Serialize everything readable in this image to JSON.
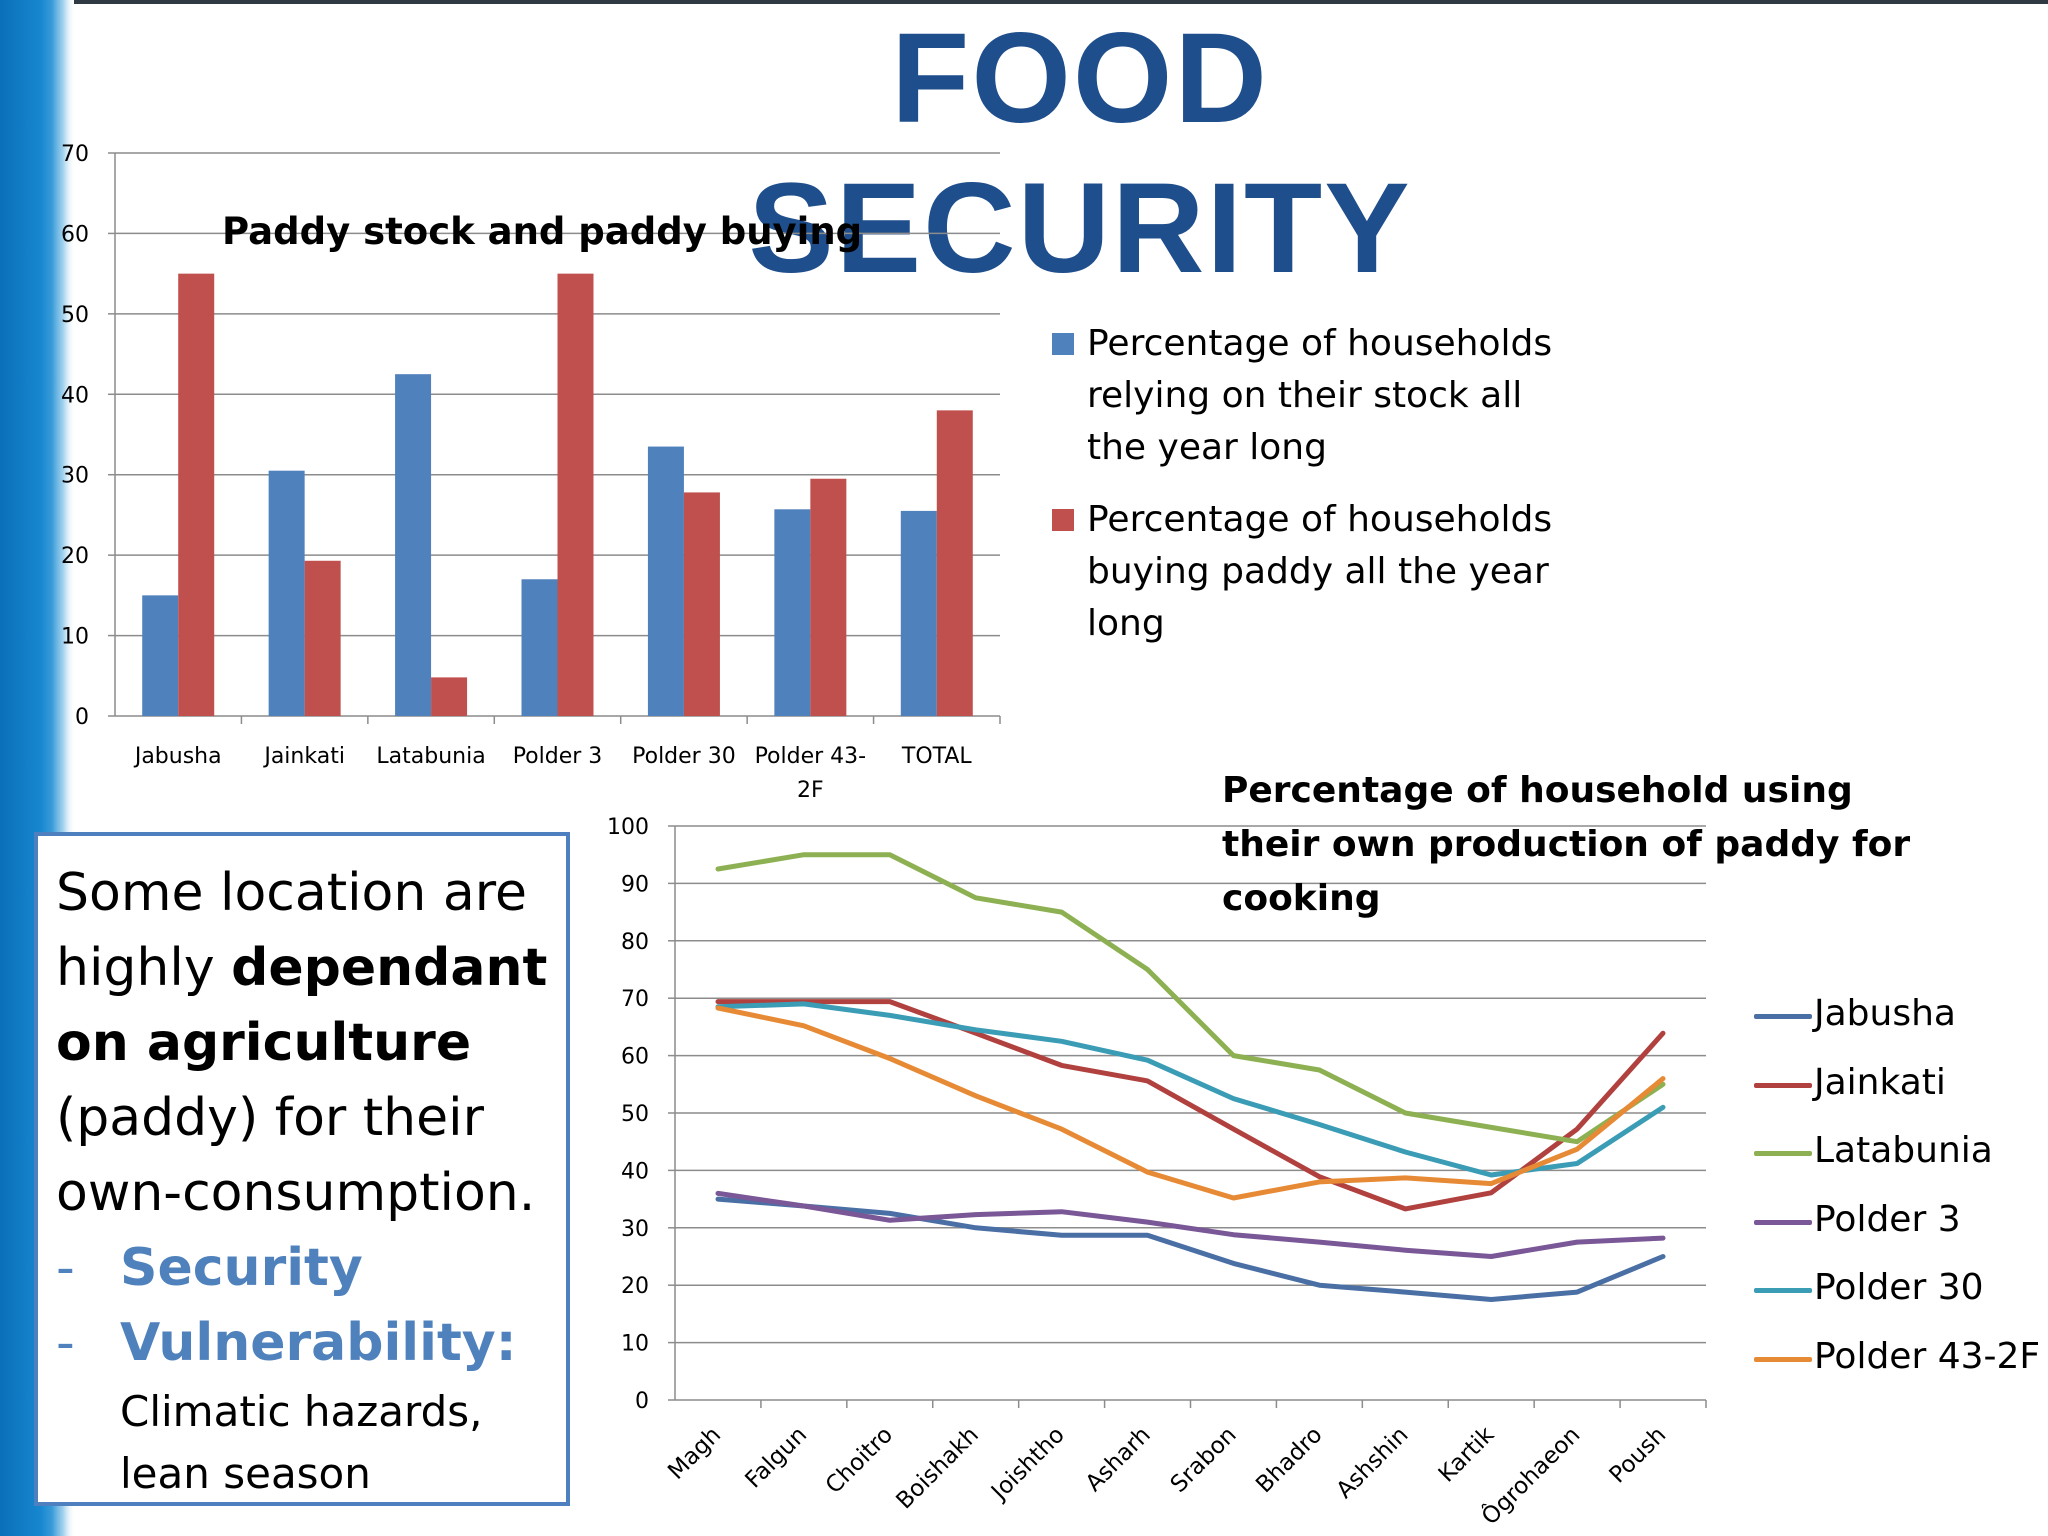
{
  "page": {
    "title": "FOOD SECURITY",
    "colors": {
      "title": "#1f4e8c",
      "side_strip": "#1787d0",
      "box_border": "#4e7fbf",
      "bullet": "#4f81bd"
    }
  },
  "chart_data": [
    {
      "type": "bar",
      "title": "Paddy stock and paddy buying",
      "categories": [
        "Jabusha",
        "Jainkati",
        "Latabunia",
        "Polder 3",
        "Polder 30",
        "Polder 43-2F",
        "TOTAL"
      ],
      "series": [
        {
          "name": "Percentage of households relying on their stock all the year long",
          "color": "#4f81bd",
          "values": [
            15,
            30.5,
            42.5,
            17,
            33.5,
            25.7,
            25.5
          ]
        },
        {
          "name": "Percentage of households buying paddy all the year long",
          "color": "#c0504d",
          "values": [
            55,
            19.3,
            4.8,
            55,
            27.8,
            29.5,
            38
          ]
        }
      ],
      "ylim": [
        0,
        70
      ],
      "yticks": [
        0,
        10,
        20,
        30,
        40,
        50,
        60,
        70
      ],
      "grid": true,
      "legend_position": "right"
    },
    {
      "type": "line",
      "title": "Percentage of household using their own production of paddy for cooking",
      "categories": [
        "Magh",
        "Falgun",
        "Choitro",
        "Boishakh",
        "Joishtho",
        "Asharh",
        "Srabon",
        "Bhadro",
        "Ashshin",
        "Kartik",
        "Ôgrohaeon",
        "Poush"
      ],
      "series": [
        {
          "name": "Jabusha",
          "color": "#4a6fa5",
          "values": [
            35,
            33.8,
            32.5,
            30,
            28.7,
            28.7,
            23.8,
            20,
            18.8,
            17.5,
            18.8,
            25
          ]
        },
        {
          "name": "Jainkati",
          "color": "#b0413e",
          "values": [
            69.4,
            69.4,
            69.4,
            63.9,
            58.3,
            55.6,
            47.2,
            38.9,
            33.3,
            36.1,
            47.2,
            63.9
          ]
        },
        {
          "name": "Latabunia",
          "color": "#8db052",
          "values": [
            92.5,
            95,
            95,
            87.5,
            85,
            75,
            60,
            57.5,
            50,
            47.5,
            45,
            55
          ]
        },
        {
          "name": "Polder 3",
          "color": "#7a5796",
          "values": [
            36,
            33.8,
            31.3,
            32.3,
            32.8,
            31,
            28.8,
            27.5,
            26.1,
            25,
            27.5,
            28.2
          ]
        },
        {
          "name": "Polder 30",
          "color": "#3a9cb5",
          "values": [
            68.5,
            69,
            67,
            64.5,
            62.5,
            59.2,
            52.5,
            48,
            43.2,
            39.2,
            41.2,
            51
          ]
        },
        {
          "name": "Polder 43-2F",
          "color": "#e78a35",
          "values": [
            68.3,
            65.2,
            59.5,
            53,
            47.2,
            39.7,
            35.2,
            38,
            38.7,
            37.7,
            43.7,
            56
          ]
        }
      ],
      "ylim": [
        0,
        100
      ],
      "yticks": [
        0,
        10,
        20,
        30,
        40,
        50,
        60,
        70,
        80,
        90,
        100
      ],
      "grid": true,
      "legend_position": "right"
    }
  ],
  "textbox": {
    "line_a": "Some location are highly ",
    "line_b_bold": "dependant on agriculture",
    "line_c": " (paddy) for their own-consumption.",
    "bullets": [
      {
        "dash": "-",
        "label": "Security"
      },
      {
        "dash": "-",
        "label": "Vulnerability:"
      }
    ],
    "sub_text": "Climatic hazards, lean season"
  }
}
